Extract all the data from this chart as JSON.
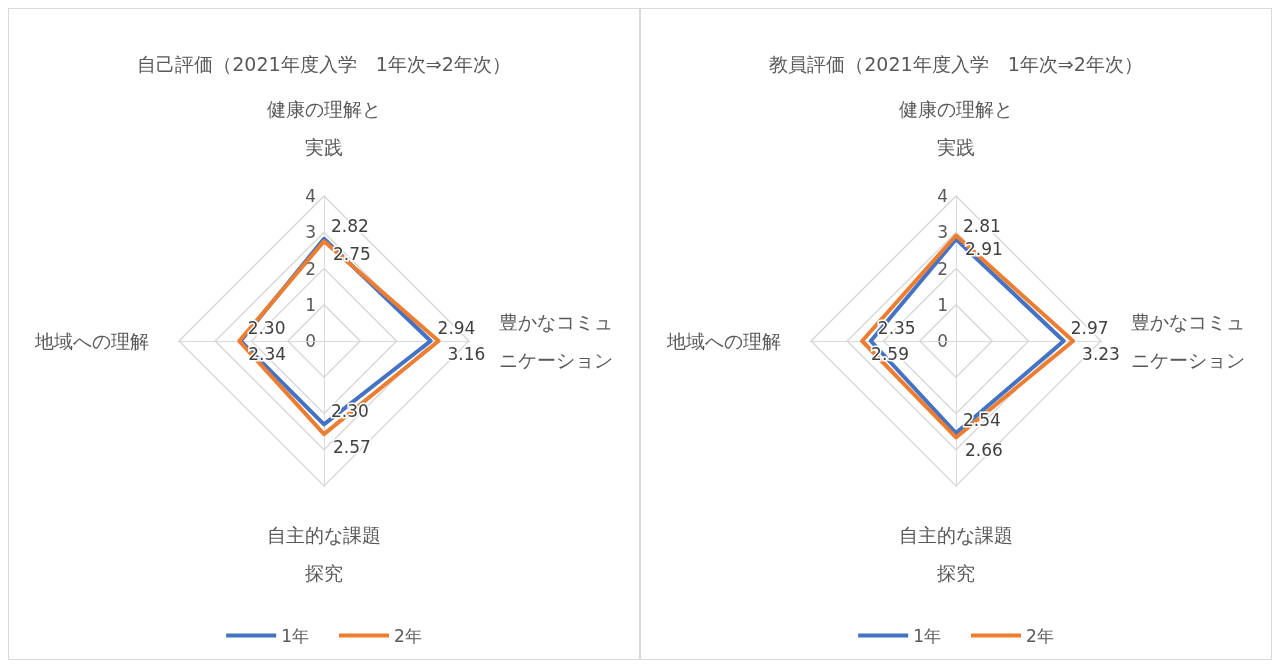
{
  "chart_data": [
    {
      "type": "radar",
      "title": "自己評価（2021年度入学　1年次⇒2年次）",
      "categories": [
        "健康の理解と実践",
        "豊かなコミュニケーション",
        "自主的な課題探究",
        "地域への理解"
      ],
      "ylim": [
        0,
        4
      ],
      "yticks": [
        0,
        1,
        2,
        3,
        4
      ],
      "grid": true,
      "legend": "bottom",
      "marker": "none",
      "line_style": "solid",
      "series": [
        {
          "name": "1年",
          "color": "#4472c4",
          "values": [
            2.82,
            2.94,
            2.3,
            2.3
          ],
          "value_labels": [
            "2.82",
            "2.94",
            "2.30",
            "2.30"
          ]
        },
        {
          "name": "2年",
          "color": "#ed7d31",
          "values": [
            2.75,
            3.16,
            2.57,
            2.34
          ],
          "value_labels": [
            "2.75",
            "3.16",
            "2.57",
            "2.34"
          ]
        }
      ]
    },
    {
      "type": "radar",
      "title": "教員評価（2021年度入学　1年次⇒2年次）",
      "categories": [
        "健康の理解と実践",
        "豊かなコミュニケーション",
        "自主的な課題探究",
        "地域への理解"
      ],
      "ylim": [
        0,
        4
      ],
      "yticks": [
        0,
        1,
        2,
        3,
        4
      ],
      "grid": true,
      "legend": "bottom",
      "marker": "none",
      "line_style": "solid",
      "series": [
        {
          "name": "1年",
          "color": "#4472c4",
          "values": [
            2.81,
            2.97,
            2.54,
            2.35
          ],
          "value_labels": [
            "2.81",
            "2.97",
            "2.54",
            "2.35"
          ]
        },
        {
          "name": "2年",
          "color": "#ed7d31",
          "values": [
            2.91,
            3.23,
            2.66,
            2.59
          ],
          "value_labels": [
            "2.91",
            "3.23",
            "2.66",
            "2.59"
          ]
        }
      ]
    }
  ]
}
